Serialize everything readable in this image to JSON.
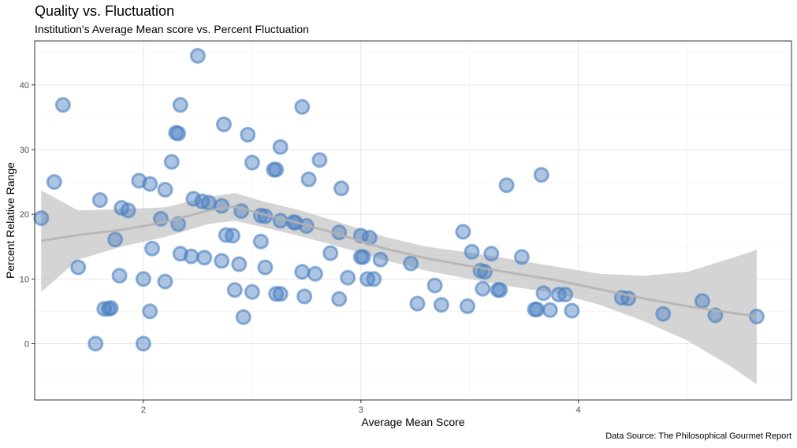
{
  "chart_data": {
    "type": "scatter",
    "title": "Quality vs. Fluctuation",
    "subtitle": "Institution's Average Mean score vs. Percent Fluctuation",
    "xlabel": "Average Mean Score",
    "ylabel": "Percent Relative Range",
    "caption": "Data Source: The Philosophical Gourmet Report",
    "xlim": [
      1.5,
      4.98
    ],
    "ylim": [
      -8.7,
      46.8
    ],
    "x_ticks": [
      2,
      3,
      4
    ],
    "y_ticks": [
      0,
      10,
      20,
      30,
      40
    ],
    "grid": true,
    "point_color": "#4a7fc0",
    "smooth_line_color": "#b3b3b3",
    "band_color": "#cccccc",
    "points": [
      {
        "x": 1.53,
        "y": 19.4
      },
      {
        "x": 1.59,
        "y": 25.0
      },
      {
        "x": 1.63,
        "y": 36.9
      },
      {
        "x": 1.7,
        "y": 11.8
      },
      {
        "x": 1.78,
        "y": 0.0
      },
      {
        "x": 1.8,
        "y": 22.2
      },
      {
        "x": 1.82,
        "y": 5.4
      },
      {
        "x": 1.84,
        "y": 5.4
      },
      {
        "x": 1.85,
        "y": 5.5
      },
      {
        "x": 1.87,
        "y": 16.1
      },
      {
        "x": 1.89,
        "y": 10.5
      },
      {
        "x": 1.9,
        "y": 21.0
      },
      {
        "x": 1.93,
        "y": 20.6
      },
      {
        "x": 1.98,
        "y": 25.2
      },
      {
        "x": 2.0,
        "y": 0.0
      },
      {
        "x": 2.0,
        "y": 10.0
      },
      {
        "x": 2.03,
        "y": 24.7
      },
      {
        "x": 2.03,
        "y": 5.0
      },
      {
        "x": 2.04,
        "y": 14.7
      },
      {
        "x": 2.08,
        "y": 19.3
      },
      {
        "x": 2.1,
        "y": 23.8
      },
      {
        "x": 2.1,
        "y": 9.6
      },
      {
        "x": 2.13,
        "y": 28.1
      },
      {
        "x": 2.15,
        "y": 32.6
      },
      {
        "x": 2.16,
        "y": 32.5
      },
      {
        "x": 2.16,
        "y": 18.5
      },
      {
        "x": 2.17,
        "y": 13.9
      },
      {
        "x": 2.17,
        "y": 36.9
      },
      {
        "x": 2.22,
        "y": 13.5
      },
      {
        "x": 2.23,
        "y": 22.4
      },
      {
        "x": 2.25,
        "y": 44.5
      },
      {
        "x": 2.27,
        "y": 22.0
      },
      {
        "x": 2.28,
        "y": 13.3
      },
      {
        "x": 2.3,
        "y": 21.8
      },
      {
        "x": 2.36,
        "y": 21.3
      },
      {
        "x": 2.36,
        "y": 12.8
      },
      {
        "x": 2.37,
        "y": 33.9
      },
      {
        "x": 2.38,
        "y": 16.8
      },
      {
        "x": 2.41,
        "y": 16.7
      },
      {
        "x": 2.42,
        "y": 8.3
      },
      {
        "x": 2.44,
        "y": 12.3
      },
      {
        "x": 2.45,
        "y": 20.5
      },
      {
        "x": 2.46,
        "y": 4.1
      },
      {
        "x": 2.48,
        "y": 32.3
      },
      {
        "x": 2.5,
        "y": 28.0
      },
      {
        "x": 2.5,
        "y": 8.0
      },
      {
        "x": 2.54,
        "y": 19.8
      },
      {
        "x": 2.54,
        "y": 15.8
      },
      {
        "x": 2.56,
        "y": 19.7
      },
      {
        "x": 2.56,
        "y": 11.8
      },
      {
        "x": 2.6,
        "y": 26.9
      },
      {
        "x": 2.61,
        "y": 26.9
      },
      {
        "x": 2.61,
        "y": 7.7
      },
      {
        "x": 2.63,
        "y": 7.7
      },
      {
        "x": 2.63,
        "y": 30.4
      },
      {
        "x": 2.63,
        "y": 19.0
      },
      {
        "x": 2.69,
        "y": 18.8
      },
      {
        "x": 2.7,
        "y": 18.7
      },
      {
        "x": 2.73,
        "y": 36.6
      },
      {
        "x": 2.73,
        "y": 11.1
      },
      {
        "x": 2.74,
        "y": 7.3
      },
      {
        "x": 2.75,
        "y": 18.2
      },
      {
        "x": 2.76,
        "y": 25.4
      },
      {
        "x": 2.79,
        "y": 10.8
      },
      {
        "x": 2.81,
        "y": 28.4
      },
      {
        "x": 2.86,
        "y": 14.0
      },
      {
        "x": 2.9,
        "y": 17.2
      },
      {
        "x": 2.9,
        "y": 6.9
      },
      {
        "x": 2.91,
        "y": 24.0
      },
      {
        "x": 2.94,
        "y": 10.2
      },
      {
        "x": 3.0,
        "y": 16.7
      },
      {
        "x": 3.0,
        "y": 13.4
      },
      {
        "x": 3.01,
        "y": 13.4
      },
      {
        "x": 3.03,
        "y": 10.0
      },
      {
        "x": 3.04,
        "y": 16.4
      },
      {
        "x": 3.06,
        "y": 10.0
      },
      {
        "x": 3.09,
        "y": 13.0
      },
      {
        "x": 3.23,
        "y": 12.4
      },
      {
        "x": 3.26,
        "y": 6.2
      },
      {
        "x": 3.34,
        "y": 9.0
      },
      {
        "x": 3.37,
        "y": 6.0
      },
      {
        "x": 3.47,
        "y": 17.3
      },
      {
        "x": 3.49,
        "y": 5.8
      },
      {
        "x": 3.51,
        "y": 14.2
      },
      {
        "x": 3.55,
        "y": 11.3
      },
      {
        "x": 3.56,
        "y": 8.5
      },
      {
        "x": 3.57,
        "y": 11.1
      },
      {
        "x": 3.6,
        "y": 13.9
      },
      {
        "x": 3.63,
        "y": 8.3
      },
      {
        "x": 3.64,
        "y": 8.3
      },
      {
        "x": 3.67,
        "y": 24.5
      },
      {
        "x": 3.74,
        "y": 13.4
      },
      {
        "x": 3.8,
        "y": 5.3
      },
      {
        "x": 3.81,
        "y": 5.3
      },
      {
        "x": 3.83,
        "y": 26.1
      },
      {
        "x": 3.84,
        "y": 7.8
      },
      {
        "x": 3.87,
        "y": 5.2
      },
      {
        "x": 3.91,
        "y": 7.6
      },
      {
        "x": 3.94,
        "y": 7.6
      },
      {
        "x": 3.97,
        "y": 5.1
      },
      {
        "x": 4.2,
        "y": 7.1
      },
      {
        "x": 4.23,
        "y": 7.0
      },
      {
        "x": 4.39,
        "y": 4.6
      },
      {
        "x": 4.57,
        "y": 6.6
      },
      {
        "x": 4.63,
        "y": 4.4
      },
      {
        "x": 4.82,
        "y": 4.2
      }
    ],
    "smooth_fit": {
      "x": [
        1.53,
        1.7,
        1.9,
        2.1,
        2.3,
        2.42,
        2.55,
        2.7,
        2.9,
        3.1,
        3.3,
        3.5,
        3.7,
        3.9,
        4.1,
        4.3,
        4.5,
        4.7,
        4.82
      ],
      "y": [
        15.9,
        16.8,
        17.6,
        18.8,
        20.6,
        21.2,
        20.0,
        18.8,
        16.9,
        14.8,
        13.2,
        12.0,
        10.9,
        9.8,
        8.4,
        7.0,
        5.8,
        4.8,
        4.2
      ],
      "lower": [
        8.0,
        13.0,
        15.0,
        16.5,
        18.5,
        19.0,
        18.0,
        16.8,
        15.0,
        13.0,
        11.3,
        10.0,
        8.8,
        7.8,
        6.0,
        3.5,
        0.5,
        -3.5,
        -6.3
      ],
      "upper": [
        23.7,
        20.6,
        20.8,
        21.1,
        22.7,
        23.3,
        22.0,
        20.8,
        18.8,
        16.6,
        15.0,
        14.1,
        13.0,
        11.9,
        10.8,
        10.5,
        11.1,
        13.2,
        14.5
      ]
    }
  }
}
